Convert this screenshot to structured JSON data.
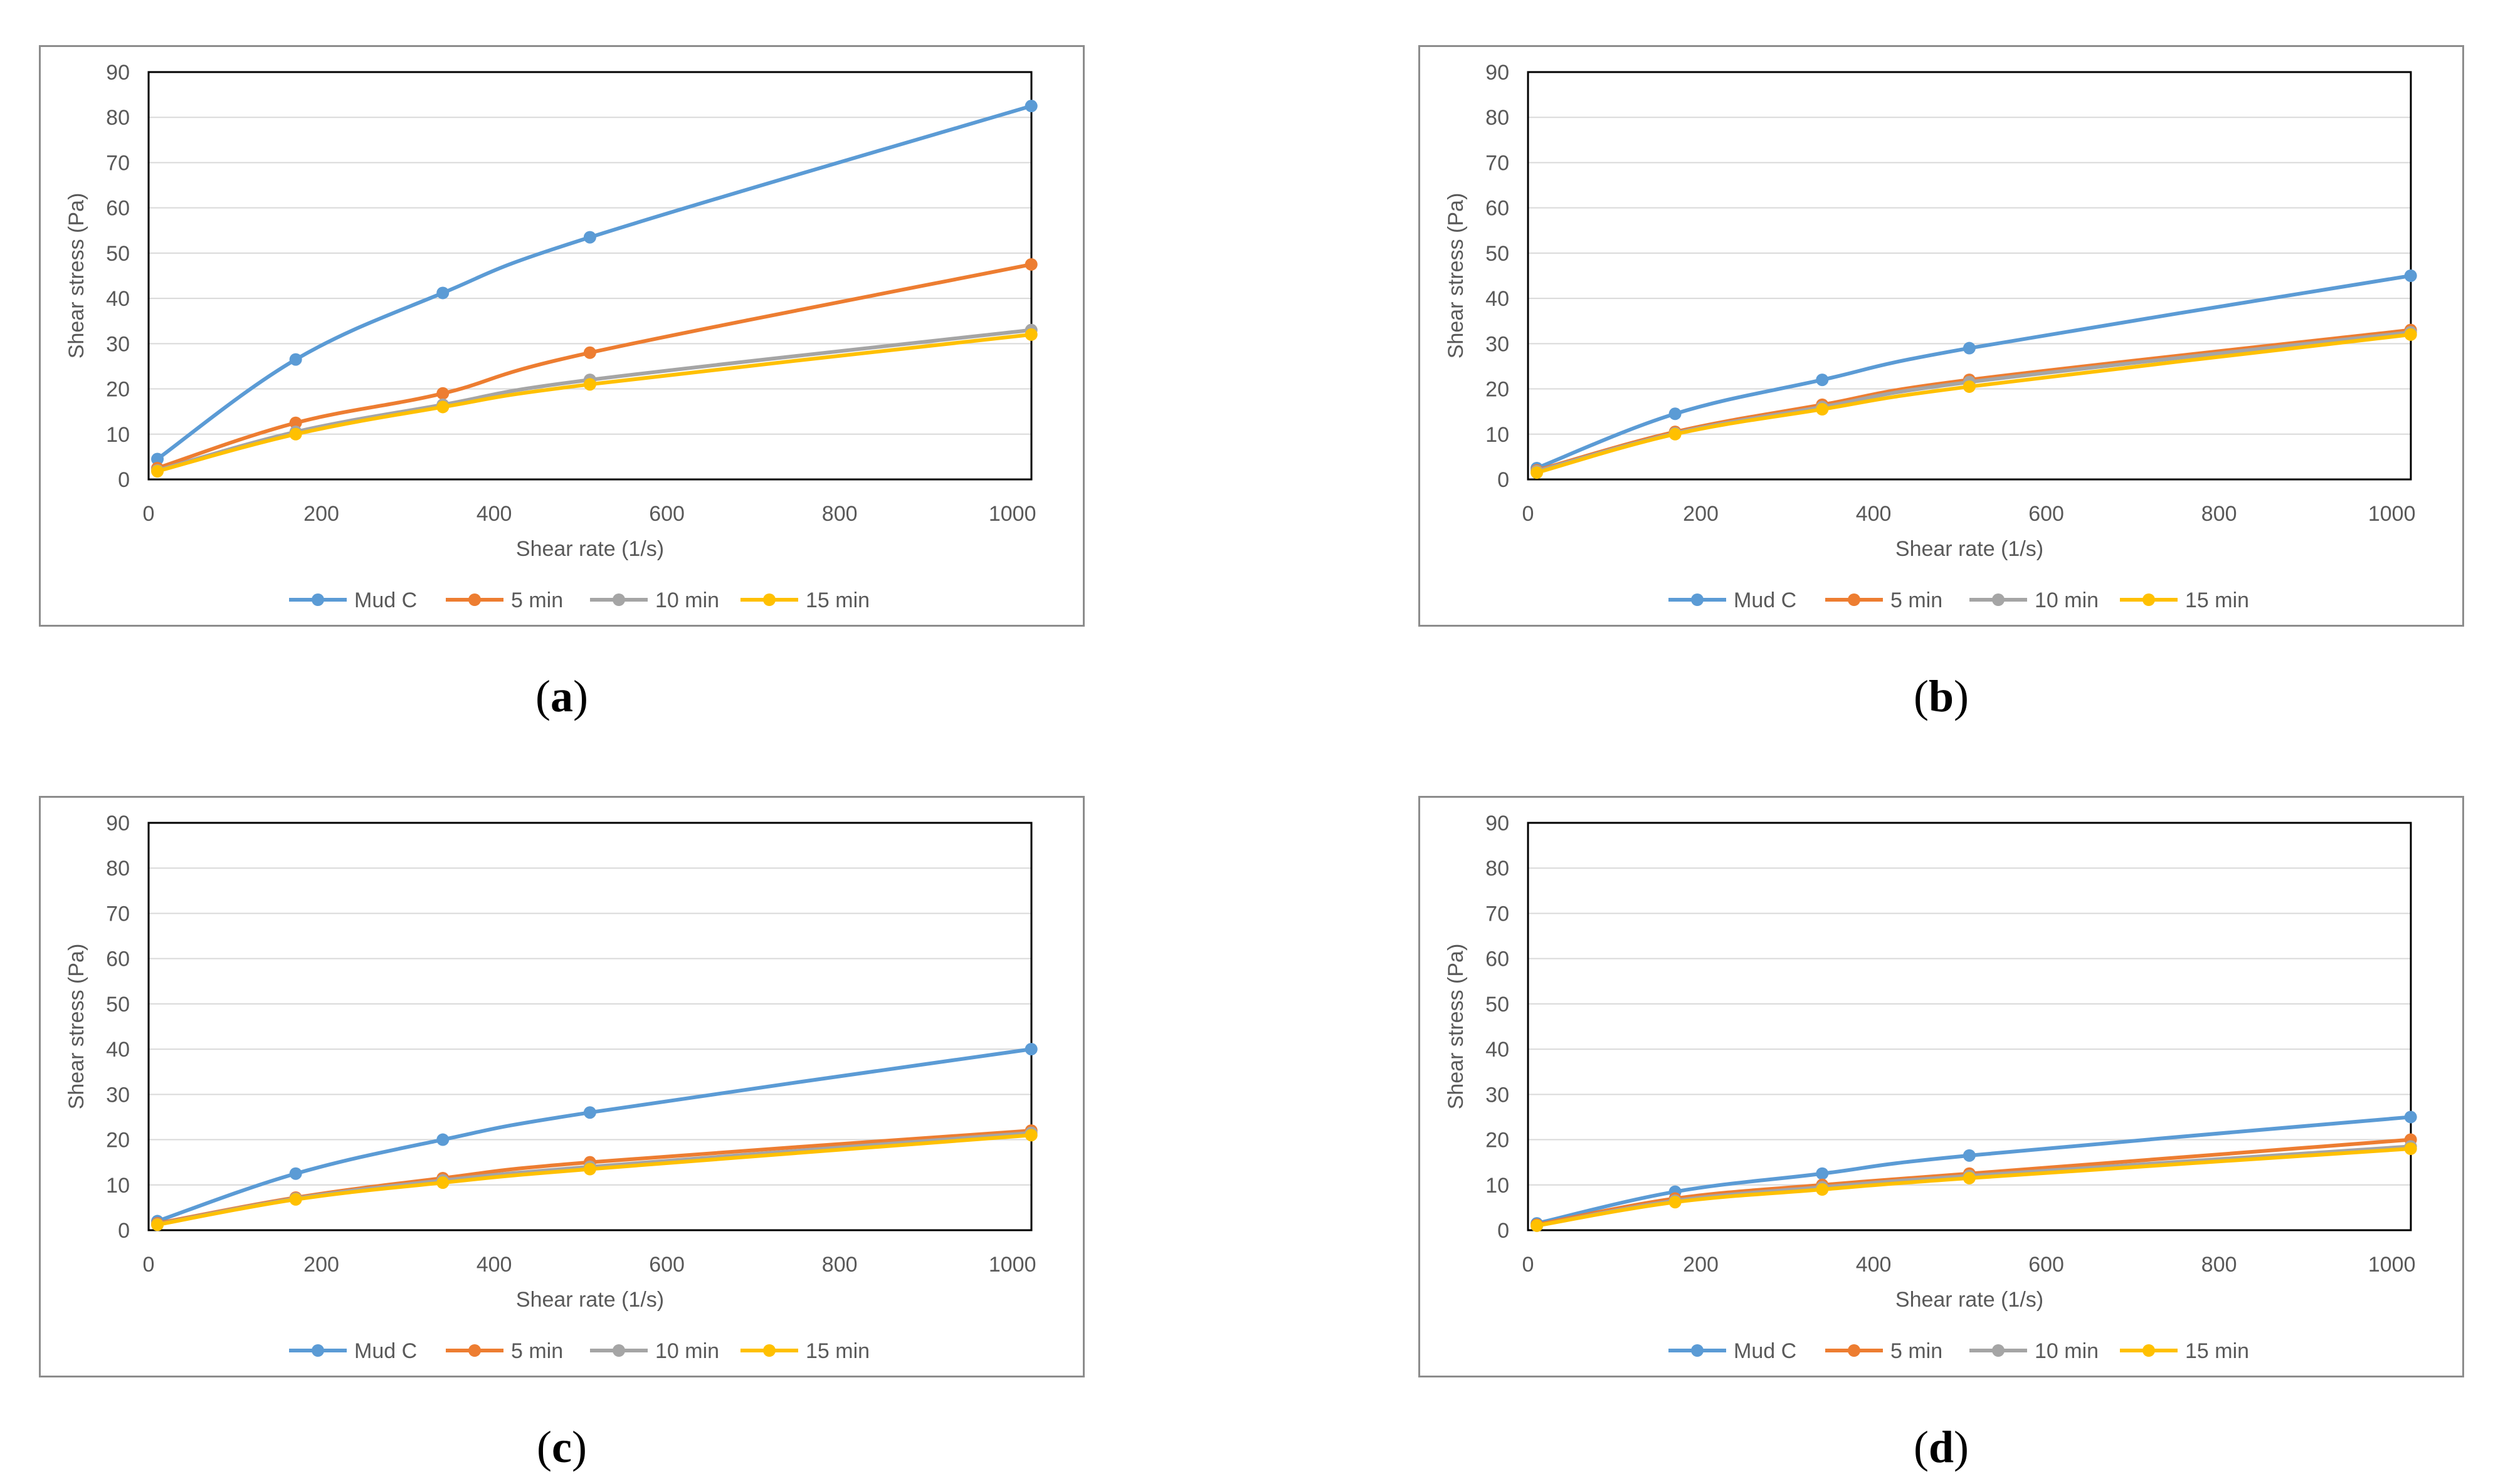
{
  "chart_data": [
    {
      "type": "line",
      "panel_label": "a",
      "xlabel": "Shear rate (1/s)",
      "ylabel": "Shear stress (Pa)",
      "xlim": [
        0,
        1022
      ],
      "ylim": [
        0,
        90
      ],
      "xticks": [
        0,
        200,
        400,
        600,
        800,
        1000
      ],
      "yticks": [
        0,
        10,
        20,
        30,
        40,
        50,
        60,
        70,
        80,
        90
      ],
      "grid": "horizontal",
      "legend_position": "bottom",
      "x": [
        10.2,
        170.3,
        340.6,
        510.9,
        1021.8
      ],
      "series": [
        {
          "name": "Mud C",
          "color": "#5B9BD5",
          "values": [
            4.5,
            26.5,
            41.2,
            53.5,
            82.5
          ]
        },
        {
          "name": "5 min",
          "color": "#ED7D31",
          "values": [
            2.5,
            12.5,
            19.0,
            28.0,
            47.5
          ]
        },
        {
          "name": "10 min",
          "color": "#A5A5A5",
          "values": [
            2.0,
            10.5,
            16.5,
            22.0,
            33.0
          ]
        },
        {
          "name": "15 min",
          "color": "#FFC000",
          "values": [
            1.8,
            10.0,
            16.0,
            21.0,
            32.0
          ]
        }
      ]
    },
    {
      "type": "line",
      "panel_label": "b",
      "xlabel": "Shear rate (1/s)",
      "ylabel": "Shear stress (Pa)",
      "xlim": [
        0,
        1022
      ],
      "ylim": [
        0,
        90
      ],
      "xticks": [
        0,
        200,
        400,
        600,
        800,
        1000
      ],
      "yticks": [
        0,
        10,
        20,
        30,
        40,
        50,
        60,
        70,
        80,
        90
      ],
      "grid": "horizontal",
      "legend_position": "bottom",
      "x": [
        10.2,
        170.3,
        340.6,
        510.9,
        1021.8
      ],
      "series": [
        {
          "name": "Mud C",
          "color": "#5B9BD5",
          "values": [
            2.5,
            14.5,
            22.0,
            29.0,
            45.0
          ]
        },
        {
          "name": "5 min",
          "color": "#ED7D31",
          "values": [
            2.0,
            10.5,
            16.5,
            22.0,
            33.0
          ]
        },
        {
          "name": "10 min",
          "color": "#A5A5A5",
          "values": [
            1.8,
            10.2,
            16.0,
            21.5,
            32.5
          ]
        },
        {
          "name": "15 min",
          "color": "#FFC000",
          "values": [
            1.5,
            10.0,
            15.5,
            20.5,
            32.0
          ]
        }
      ]
    },
    {
      "type": "line",
      "panel_label": "c",
      "xlabel": "Shear rate (1/s)",
      "ylabel": "Shear stress (Pa)",
      "xlim": [
        0,
        1022
      ],
      "ylim": [
        0,
        90
      ],
      "xticks": [
        0,
        200,
        400,
        600,
        800,
        1000
      ],
      "yticks": [
        0,
        10,
        20,
        30,
        40,
        50,
        60,
        70,
        80,
        90
      ],
      "grid": "horizontal",
      "legend_position": "bottom",
      "x": [
        10.2,
        170.3,
        340.6,
        510.9,
        1021.8
      ],
      "series": [
        {
          "name": "Mud C",
          "color": "#5B9BD5",
          "values": [
            2.0,
            12.5,
            20.0,
            26.0,
            40.0
          ]
        },
        {
          "name": "5 min",
          "color": "#ED7D31",
          "values": [
            1.5,
            7.2,
            11.5,
            15.0,
            22.0
          ]
        },
        {
          "name": "10 min",
          "color": "#A5A5A5",
          "values": [
            1.3,
            7.0,
            11.0,
            14.0,
            21.5
          ]
        },
        {
          "name": "15 min",
          "color": "#FFC000",
          "values": [
            1.2,
            6.8,
            10.5,
            13.5,
            21.0
          ]
        }
      ]
    },
    {
      "type": "line",
      "panel_label": "d",
      "xlabel": "Shear rate (1/s)",
      "ylabel": "Shear stress (Pa)",
      "xlim": [
        0,
        1022
      ],
      "ylim": [
        0,
        90
      ],
      "xticks": [
        0,
        200,
        400,
        600,
        800,
        1000
      ],
      "yticks": [
        0,
        10,
        20,
        30,
        40,
        50,
        60,
        70,
        80,
        90
      ],
      "grid": "horizontal",
      "legend_position": "bottom",
      "x": [
        10.2,
        170.3,
        340.6,
        510.9,
        1021.8
      ],
      "series": [
        {
          "name": "Mud C",
          "color": "#5B9BD5",
          "values": [
            1.5,
            8.5,
            12.5,
            16.5,
            25.0
          ]
        },
        {
          "name": "5 min",
          "color": "#ED7D31",
          "values": [
            1.2,
            7.0,
            10.0,
            12.5,
            20.0
          ]
        },
        {
          "name": "10 min",
          "color": "#A5A5A5",
          "values": [
            1.0,
            6.5,
            9.5,
            12.0,
            18.5
          ]
        },
        {
          "name": "15 min",
          "color": "#FFC000",
          "values": [
            1.0,
            6.2,
            9.0,
            11.5,
            18.0
          ]
        }
      ]
    }
  ],
  "captions": [
    "a",
    "b",
    "c",
    "d"
  ]
}
